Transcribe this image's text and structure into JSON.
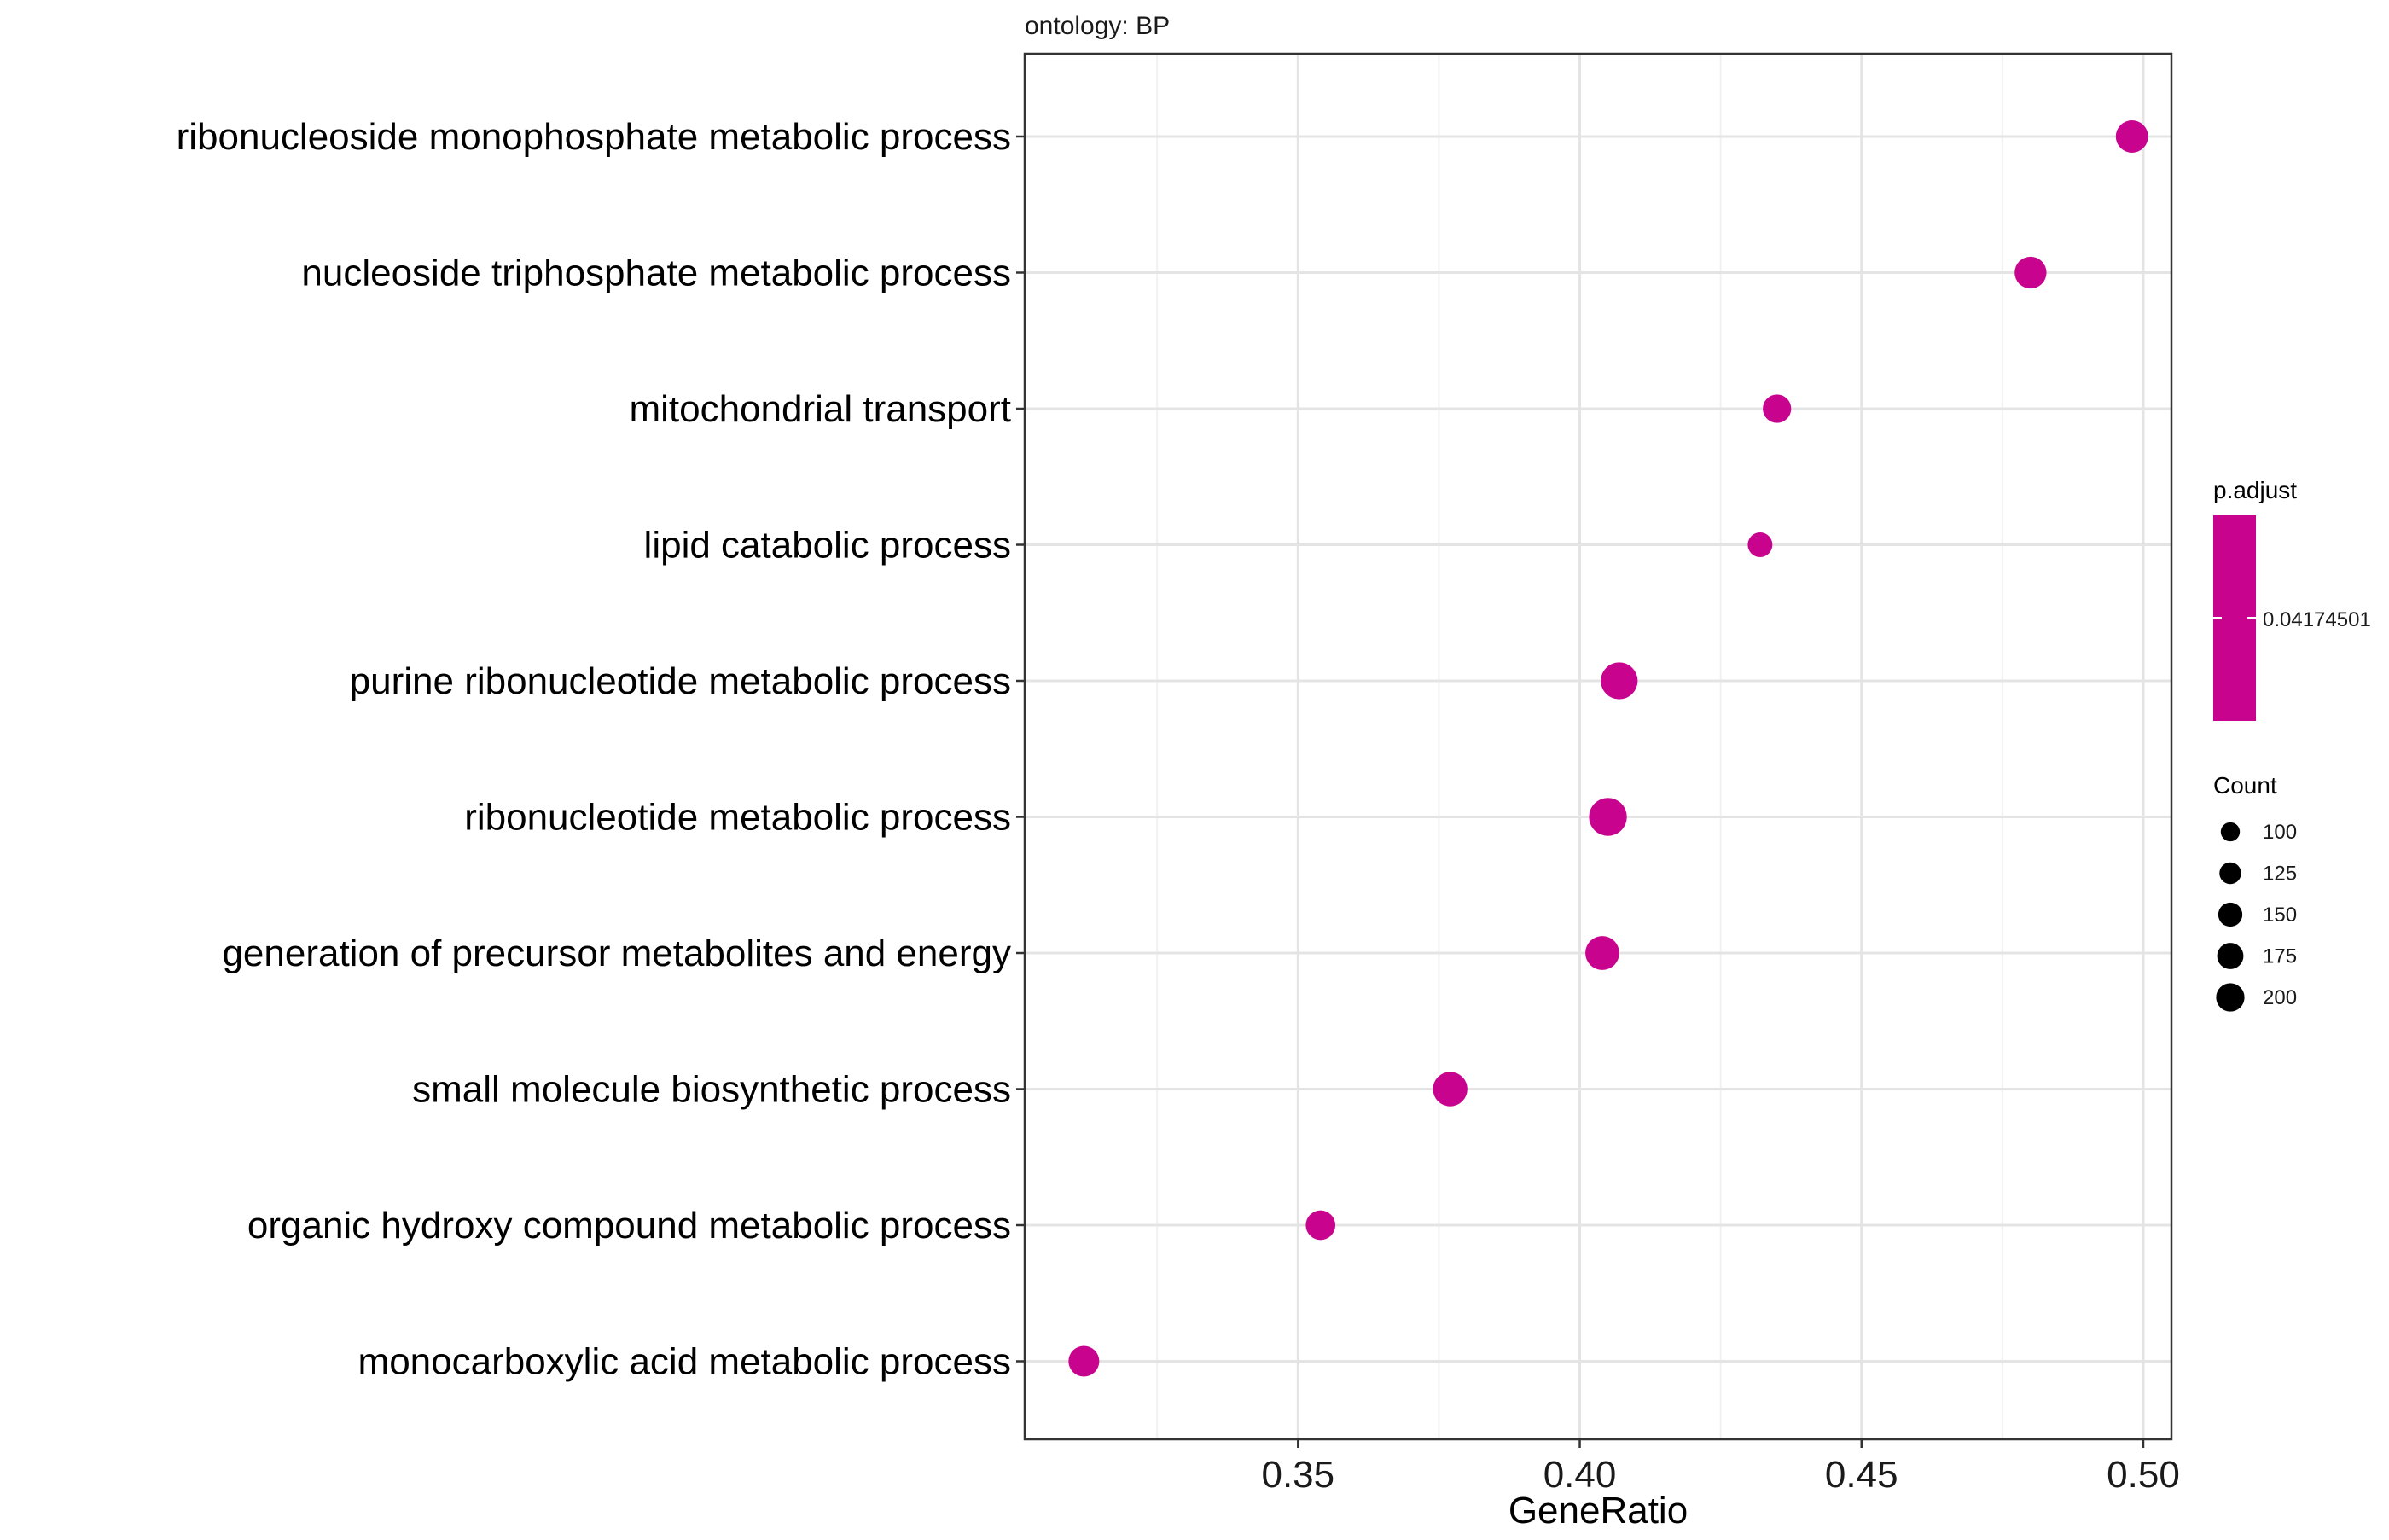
{
  "chart_data": {
    "type": "scatter",
    "facet_title": "ontology: BP",
    "xlabel": "GeneRatio",
    "ylabel": "",
    "xlim": [
      0.3015,
      0.505
    ],
    "x_ticks": [
      0.35,
      0.4,
      0.45,
      0.5
    ],
    "x_tick_labels": [
      "0.35",
      "0.40",
      "0.45",
      "0.50"
    ],
    "grid": true,
    "point_color": "#C8048F",
    "categories": [
      "ribonucleoside monophosphate metabolic process",
      "nucleoside triphosphate metabolic process",
      "mitochondrial transport",
      "lipid catabolic process",
      "purine ribonucleotide metabolic process",
      "ribonucleotide metabolic process",
      "generation of precursor metabolites and energy",
      "small molecule biosynthetic process",
      "organic hydroxy compound metabolic process",
      "monocarboxylic acid metabolic process"
    ],
    "gene_ratio": [
      0.498,
      0.48,
      0.435,
      0.432,
      0.407,
      0.405,
      0.404,
      0.377,
      0.354,
      0.312
    ],
    "count": [
      150,
      145,
      115,
      87,
      195,
      205,
      165,
      170,
      125,
      135
    ],
    "legend_padjust": {
      "title": "p.adjust",
      "label": "0.04174501",
      "color": "#C8048F"
    },
    "legend_count": {
      "title": "Count",
      "values": [
        100,
        125,
        150,
        175,
        200
      ],
      "labels": [
        "100",
        "125",
        "150",
        "175",
        "200"
      ]
    },
    "legend_position": "right"
  }
}
